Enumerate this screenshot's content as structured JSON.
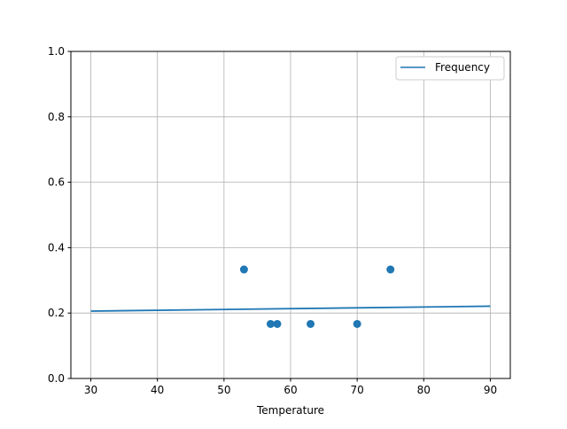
{
  "chart_data": {
    "type": "scatter",
    "title": "",
    "xlabel": "Temperature",
    "ylabel": "",
    "xlim": [
      27,
      93
    ],
    "ylim": [
      0,
      1
    ],
    "xticks": [
      30,
      40,
      50,
      60,
      70,
      80,
      90
    ],
    "yticks": [
      0.0,
      0.2,
      0.4,
      0.6,
      0.8,
      1.0
    ],
    "xtick_labels": [
      "30",
      "40",
      "50",
      "60",
      "70",
      "80",
      "90"
    ],
    "ytick_labels": [
      "0.0",
      "0.2",
      "0.4",
      "0.6",
      "0.8",
      "1.0"
    ],
    "grid": true,
    "legend_position": "top-right",
    "color": "#1f77b4",
    "points": {
      "x": [
        53,
        57,
        58,
        63,
        70,
        75
      ],
      "y": [
        0.3333,
        0.1667,
        0.1667,
        0.1667,
        0.1667,
        0.3333
      ]
    },
    "series": [
      {
        "name": "Frequency",
        "type": "line",
        "x": [
          30,
          90
        ],
        "y": [
          0.206,
          0.221
        ]
      }
    ]
  }
}
